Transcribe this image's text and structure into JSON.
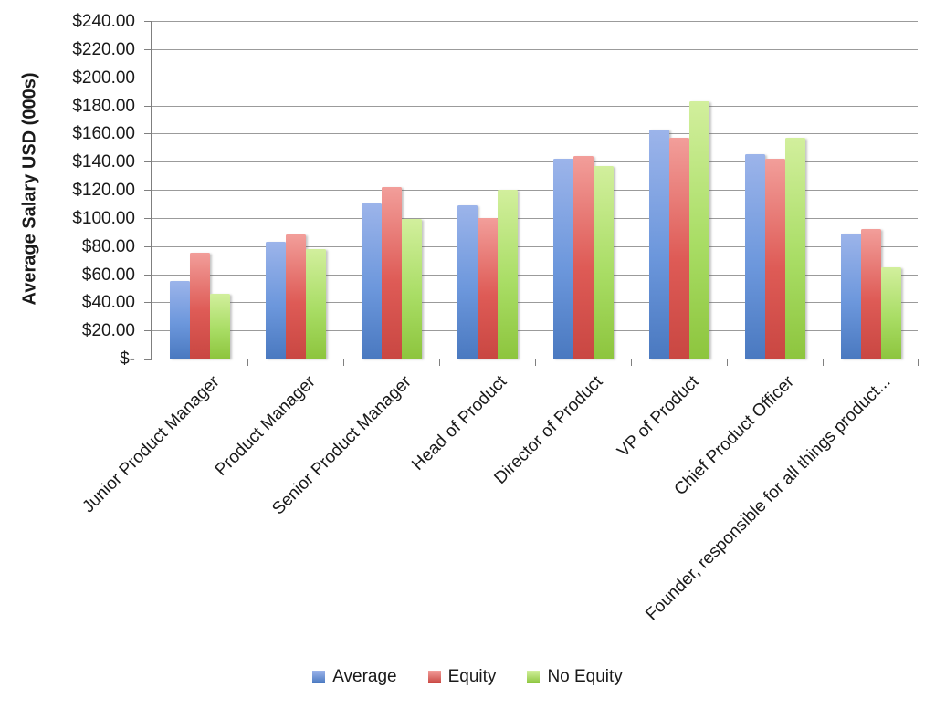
{
  "chart_data": {
    "type": "bar",
    "title": "",
    "xlabel": "",
    "ylabel": "Average Salary USD (000s)",
    "categories": [
      "Junior Product Manager",
      "Product Manager",
      "Senior Product Manager",
      "Head of Product",
      "Director of Product",
      "VP of Product",
      "Chief Product Officer",
      "Founder, responsible for all things product..."
    ],
    "series": [
      {
        "name": "Average",
        "color": "#6c97dc",
        "color_top": "#9cb4ea",
        "color_bottom": "#4a79c0",
        "values": [
          55,
          83,
          110,
          109,
          142,
          163,
          145,
          89
        ]
      },
      {
        "name": "Equity",
        "color": "#de5b56",
        "color_top": "#f29e9a",
        "color_bottom": "#c94742",
        "values": [
          75,
          88,
          122,
          100,
          144,
          157,
          142,
          92
        ]
      },
      {
        "name": "No Equity",
        "color": "#a9dd65",
        "color_top": "#d2ef9d",
        "color_bottom": "#8dc53e",
        "values": [
          46,
          78,
          99,
          120,
          137,
          183,
          157,
          65
        ]
      }
    ],
    "ylim": [
      0,
      240
    ],
    "ytick_step": 20,
    "ytick_labels": [
      "$-",
      "$20.00",
      "$40.00",
      "$60.00",
      "$80.00",
      "$100.00",
      "$120.00",
      "$140.00",
      "$160.00",
      "$180.00",
      "$200.00",
      "$220.00",
      "$240.00"
    ],
    "grid": true,
    "legend_position": "bottom",
    "legend": [
      "Average",
      "Equity",
      "No Equity"
    ]
  }
}
